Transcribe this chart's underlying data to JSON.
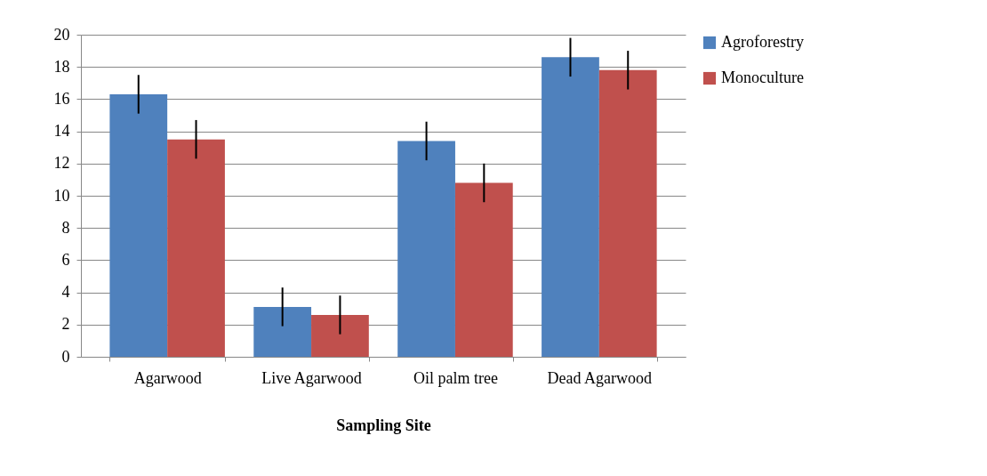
{
  "chart_data": {
    "type": "bar",
    "xlabel": "Sampling Site",
    "categories": [
      "Agarwood",
      "Live Agarwood",
      "Oil palm tree",
      "Dead Agarwood"
    ],
    "series": [
      {
        "name": "Agroforestry",
        "color": "#4f81bd",
        "values": [
          16.3,
          3.1,
          13.4,
          18.6
        ],
        "errors": [
          1.2,
          1.2,
          1.2,
          1.2
        ]
      },
      {
        "name": "Monoculture",
        "color": "#c0504d",
        "values": [
          13.5,
          2.6,
          10.8,
          17.8
        ],
        "errors": [
          1.2,
          1.2,
          1.2,
          1.2
        ]
      }
    ],
    "ylim": [
      0,
      20
    ],
    "yticks": [
      0,
      2,
      4,
      6,
      8,
      10,
      12,
      14,
      16,
      18,
      20
    ],
    "grid": "y",
    "legend": "right"
  }
}
